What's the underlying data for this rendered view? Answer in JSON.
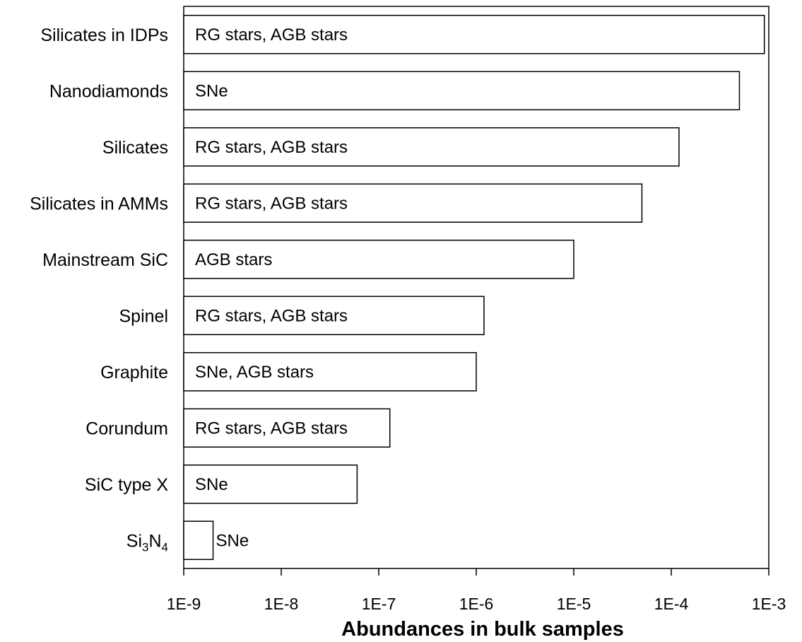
{
  "chart_data": {
    "type": "bar",
    "orientation": "horizontal",
    "xscale": "log",
    "xlim": [
      1e-09,
      0.001
    ],
    "xlabel": "Abundances in bulk samples",
    "ylabel": "",
    "title": "",
    "grid": false,
    "xticks": [
      "1E-9",
      "1E-8",
      "1E-7",
      "1E-6",
      "1E-5",
      "1E-4",
      "1E-3"
    ],
    "categories": [
      {
        "label": "Silicates in IDPs",
        "value": 0.0009,
        "source": "RG stars, AGB stars"
      },
      {
        "label": "Nanodiamonds",
        "value": 0.0005,
        "source": "SNe"
      },
      {
        "label": "Silicates",
        "value": 0.00012,
        "source": "RG stars, AGB stars"
      },
      {
        "label": "Silicates in AMMs",
        "value": 5e-05,
        "source": "RG stars, AGB stars"
      },
      {
        "label": "Mainstream SiC",
        "value": 1e-05,
        "source": "AGB stars"
      },
      {
        "label": "Spinel",
        "value": 1.2e-06,
        "source": "RG stars, AGB stars"
      },
      {
        "label": "Graphite",
        "value": 1e-06,
        "source": "SNe, AGB stars"
      },
      {
        "label": "Corundum",
        "value": 1.3e-07,
        "source": "RG stars, AGB stars"
      },
      {
        "label": "SiC type X",
        "value": 6e-08,
        "source": "SNe"
      },
      {
        "label": "Si3N4",
        "label_parts": [
          "Si",
          "3",
          "N",
          "4"
        ],
        "value": 2e-09,
        "source": "SNe"
      }
    ]
  }
}
